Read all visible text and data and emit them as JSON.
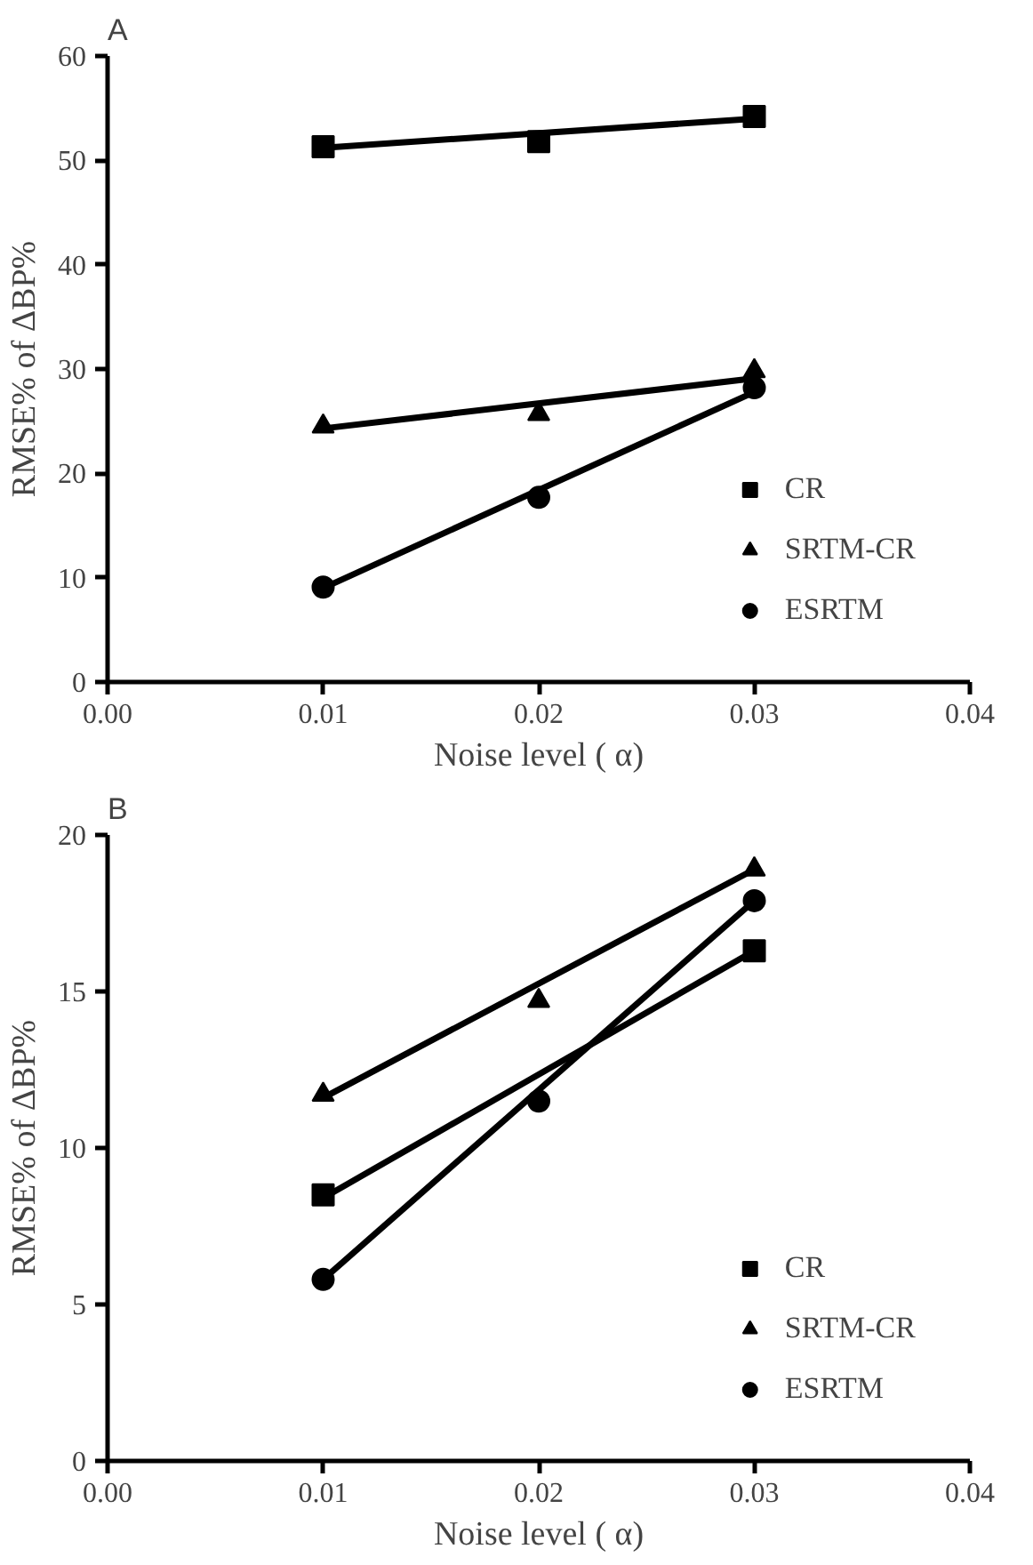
{
  "chart_data": [
    {
      "type": "scatter",
      "title": "A",
      "xlabel": "Noise level ( α)",
      "ylabel": "RMSE% of ΔBP%",
      "xlim": [
        0,
        0.04
      ],
      "ylim": [
        0,
        60
      ],
      "xticks": [
        {
          "value": 0,
          "label": "0.00"
        },
        {
          "value": 0.01,
          "label": "0.01"
        },
        {
          "value": 0.02,
          "label": "0.02"
        },
        {
          "value": 0.03,
          "label": "0.03"
        },
        {
          "value": 0.04,
          "label": "0.04"
        }
      ],
      "yticks": [
        0,
        10,
        20,
        30,
        40,
        50,
        60
      ],
      "grid": false,
      "legend": "bottom right",
      "series": [
        {
          "name": "CR",
          "color": "#000000",
          "marker": "square",
          "x": [
            0.01,
            0.02,
            0.03
          ],
          "values": [
            51.3,
            51.8,
            54.2
          ]
        },
        {
          "name": "SRTM-CR",
          "color": "#000000",
          "marker": "triangle",
          "x": [
            0.01,
            0.02,
            0.03
          ],
          "values": [
            24.5,
            25.7,
            29.8
          ]
        },
        {
          "name": "ESRTM",
          "color": "#000000",
          "marker": "circle",
          "x": [
            0.01,
            0.02,
            0.03
          ],
          "values": [
            9.1,
            17.7,
            28.2
          ]
        },
        {
          "type": "line",
          "color": "#000000",
          "x": [
            0.01,
            0.03
          ],
          "values": [
            51.2,
            54.0
          ]
        },
        {
          "type": "line",
          "color": "#000000",
          "x": [
            0.01,
            0.03
          ],
          "values": [
            24.3,
            29.1
          ]
        },
        {
          "type": "line",
          "color": "#000000",
          "x": [
            0.01,
            0.03
          ],
          "values": [
            9.0,
            27.8
          ]
        }
      ]
    },
    {
      "type": "scatter",
      "title": "B",
      "xlabel": "Noise level ( α)",
      "ylabel": "RMSE% of ΔBP%",
      "xlim": [
        0,
        0.04
      ],
      "ylim": [
        0,
        20
      ],
      "xticks": [
        {
          "value": 0,
          "label": "0.00"
        },
        {
          "value": 0.01,
          "label": "0.01"
        },
        {
          "value": 0.02,
          "label": "0.02"
        },
        {
          "value": 0.03,
          "label": "0.03"
        },
        {
          "value": 0.04,
          "label": "0.04"
        }
      ],
      "yticks": [
        0,
        5,
        10,
        15,
        20
      ],
      "grid": false,
      "legend": "bottom right",
      "series": [
        {
          "name": "CR",
          "color": "#000000",
          "marker": "square",
          "x": [
            0.01,
            0.02,
            0.03
          ],
          "values": [
            8.5,
            null,
            16.3
          ]
        },
        {
          "name": "SRTM-CR",
          "color": "#000000",
          "marker": "triangle",
          "x": [
            0.01,
            0.02,
            0.03
          ],
          "values": [
            11.7,
            14.7,
            18.9
          ]
        },
        {
          "name": "ESRTM",
          "color": "#000000",
          "marker": "circle",
          "x": [
            0.01,
            0.02,
            0.03
          ],
          "values": [
            5.8,
            11.5,
            17.9
          ]
        },
        {
          "type": "line",
          "color": "#000000",
          "x": [
            0.01,
            0.03
          ],
          "values": [
            8.4,
            16.3
          ]
        },
        {
          "type": "line",
          "color": "#000000",
          "x": [
            0.01,
            0.03
          ],
          "values": [
            11.6,
            18.9
          ]
        },
        {
          "type": "line",
          "color": "#000000",
          "x": [
            0.01,
            0.03
          ],
          "values": [
            5.8,
            17.9
          ]
        }
      ]
    }
  ]
}
